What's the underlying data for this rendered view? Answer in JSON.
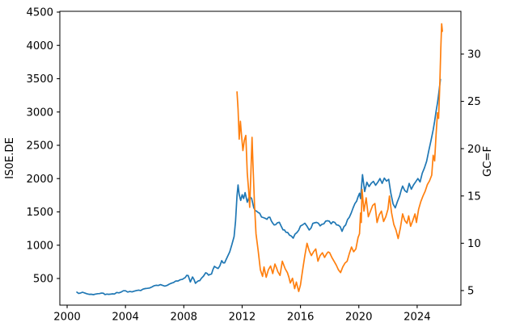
{
  "chart_data": {
    "type": "line",
    "title": "",
    "xlabel": "",
    "ylabel": "IS0E.DE",
    "y2label": "GC=F",
    "legend": "none",
    "grid": false,
    "background": "#ffffff",
    "axis_color": "#000000",
    "xlim": [
      1999.5,
      2027.0
    ],
    "ylim_left": [
      100,
      4512
    ],
    "ylim_right": [
      3.46,
      34.52
    ],
    "x_ticks": [
      2000,
      2004,
      2008,
      2012,
      2016,
      2020,
      2024
    ],
    "y_ticks_left": [
      500,
      1000,
      1500,
      2000,
      2500,
      3000,
      3500,
      4000,
      4500
    ],
    "y_ticks_right": [
      5,
      10,
      15,
      20,
      25,
      30
    ],
    "series": [
      {
        "name": "IS0E.DE",
        "yaxis": "left",
        "color": "#1f77b4",
        "points": [
          [
            2000.67,
            295
          ],
          [
            2000.9,
            280
          ],
          [
            2001.2,
            283
          ],
          [
            2001.5,
            262
          ],
          [
            2001.8,
            258
          ],
          [
            2002.1,
            272
          ],
          [
            2002.35,
            281
          ],
          [
            2002.6,
            259
          ],
          [
            2002.85,
            263
          ],
          [
            2003.1,
            270
          ],
          [
            2003.4,
            290
          ],
          [
            2003.7,
            296
          ],
          [
            2004.0,
            316
          ],
          [
            2004.3,
            305
          ],
          [
            2004.6,
            310
          ],
          [
            2004.9,
            325
          ],
          [
            2005.2,
            340
          ],
          [
            2005.5,
            352
          ],
          [
            2005.8,
            371
          ],
          [
            2006.1,
            398
          ],
          [
            2006.4,
            408
          ],
          [
            2006.7,
            386
          ],
          [
            2007.0,
            415
          ],
          [
            2007.3,
            440
          ],
          [
            2007.6,
            462
          ],
          [
            2007.9,
            487
          ],
          [
            2008.1,
            515
          ],
          [
            2008.3,
            545
          ],
          [
            2008.45,
            448
          ],
          [
            2008.6,
            523
          ],
          [
            2008.8,
            427
          ],
          [
            2009.0,
            465
          ],
          [
            2009.2,
            503
          ],
          [
            2009.5,
            586
          ],
          [
            2009.7,
            550
          ],
          [
            2009.9,
            568
          ],
          [
            2010.1,
            683
          ],
          [
            2010.35,
            650
          ],
          [
            2010.6,
            768
          ],
          [
            2010.8,
            735
          ],
          [
            2011.0,
            830
          ],
          [
            2011.15,
            900
          ],
          [
            2011.3,
            1010
          ],
          [
            2011.45,
            1130
          ],
          [
            2011.55,
            1360
          ],
          [
            2011.65,
            1740
          ],
          [
            2011.72,
            1905
          ],
          [
            2011.8,
            1760
          ],
          [
            2011.9,
            1672
          ],
          [
            2012.0,
            1758
          ],
          [
            2012.1,
            1700
          ],
          [
            2012.2,
            1790
          ],
          [
            2012.35,
            1645
          ],
          [
            2012.5,
            1735
          ],
          [
            2012.65,
            1700
          ],
          [
            2012.8,
            1560
          ],
          [
            2013.0,
            1510
          ],
          [
            2013.2,
            1480
          ],
          [
            2013.45,
            1415
          ],
          [
            2013.7,
            1388
          ],
          [
            2013.9,
            1420
          ],
          [
            2014.1,
            1330
          ],
          [
            2014.3,
            1308
          ],
          [
            2014.55,
            1345
          ],
          [
            2014.8,
            1230
          ],
          [
            2015.0,
            1195
          ],
          [
            2015.25,
            1150
          ],
          [
            2015.5,
            1106
          ],
          [
            2015.75,
            1188
          ],
          [
            2016.0,
            1288
          ],
          [
            2016.3,
            1330
          ],
          [
            2016.6,
            1228
          ],
          [
            2016.85,
            1328
          ],
          [
            2017.1,
            1342
          ],
          [
            2017.35,
            1290
          ],
          [
            2017.6,
            1320
          ],
          [
            2017.85,
            1368
          ],
          [
            2018.1,
            1320
          ],
          [
            2018.35,
            1342
          ],
          [
            2018.6,
            1300
          ],
          [
            2018.85,
            1208
          ],
          [
            2019.1,
            1305
          ],
          [
            2019.35,
            1420
          ],
          [
            2019.6,
            1555
          ],
          [
            2019.85,
            1660
          ],
          [
            2020.05,
            1780
          ],
          [
            2020.12,
            1700
          ],
          [
            2020.25,
            2060
          ],
          [
            2020.4,
            1805
          ],
          [
            2020.55,
            1945
          ],
          [
            2020.7,
            1880
          ],
          [
            2020.85,
            1930
          ],
          [
            2021.0,
            1958
          ],
          [
            2021.15,
            1900
          ],
          [
            2021.3,
            1945
          ],
          [
            2021.45,
            2000
          ],
          [
            2021.6,
            1928
          ],
          [
            2021.75,
            2008
          ],
          [
            2021.9,
            1962
          ],
          [
            2022.05,
            1990
          ],
          [
            2022.2,
            1778
          ],
          [
            2022.35,
            1620
          ],
          [
            2022.5,
            1560
          ],
          [
            2022.65,
            1655
          ],
          [
            2022.8,
            1738
          ],
          [
            2023.0,
            1888
          ],
          [
            2023.15,
            1820
          ],
          [
            2023.3,
            1795
          ],
          [
            2023.45,
            1928
          ],
          [
            2023.6,
            1840
          ],
          [
            2023.75,
            1905
          ],
          [
            2023.9,
            1952
          ],
          [
            2024.05,
            2000
          ],
          [
            2024.2,
            1950
          ],
          [
            2024.35,
            2080
          ],
          [
            2024.5,
            2160
          ],
          [
            2024.65,
            2260
          ],
          [
            2024.8,
            2420
          ],
          [
            2024.95,
            2570
          ],
          [
            2025.1,
            2730
          ],
          [
            2025.2,
            2860
          ],
          [
            2025.3,
            3010
          ],
          [
            2025.4,
            3140
          ],
          [
            2025.48,
            3280
          ],
          [
            2025.55,
            3400
          ],
          [
            2025.6,
            3490
          ]
        ]
      },
      {
        "name": "GC=F",
        "yaxis": "right",
        "color": "#ff7f0e",
        "points": [
          [
            2011.65,
            26.0
          ],
          [
            2011.72,
            24.2
          ],
          [
            2011.8,
            21.0
          ],
          [
            2011.88,
            22.9
          ],
          [
            2011.95,
            21.5
          ],
          [
            2012.05,
            19.8
          ],
          [
            2012.15,
            20.9
          ],
          [
            2012.25,
            21.4
          ],
          [
            2012.35,
            17.4
          ],
          [
            2012.45,
            15.5
          ],
          [
            2012.52,
            13.8
          ],
          [
            2012.6,
            17.5
          ],
          [
            2012.68,
            21.2
          ],
          [
            2012.75,
            18.0
          ],
          [
            2012.85,
            14.0
          ],
          [
            2012.95,
            11.0
          ],
          [
            2013.1,
            9.2
          ],
          [
            2013.25,
            7.2
          ],
          [
            2013.4,
            6.5
          ],
          [
            2013.5,
            7.5
          ],
          [
            2013.65,
            6.4
          ],
          [
            2013.8,
            7.2
          ],
          [
            2013.95,
            7.6
          ],
          [
            2014.1,
            6.8
          ],
          [
            2014.25,
            7.8
          ],
          [
            2014.45,
            7.0
          ],
          [
            2014.6,
            6.6
          ],
          [
            2014.75,
            8.1
          ],
          [
            2014.95,
            7.3
          ],
          [
            2015.1,
            6.9
          ],
          [
            2015.3,
            5.8
          ],
          [
            2015.45,
            6.3
          ],
          [
            2015.6,
            5.2
          ],
          [
            2015.72,
            5.9
          ],
          [
            2015.88,
            4.9
          ],
          [
            2016.0,
            5.6
          ],
          [
            2016.15,
            7.2
          ],
          [
            2016.3,
            8.7
          ],
          [
            2016.45,
            10.0
          ],
          [
            2016.6,
            9.2
          ],
          [
            2016.75,
            8.7
          ],
          [
            2016.9,
            9.1
          ],
          [
            2017.05,
            9.4
          ],
          [
            2017.2,
            8.1
          ],
          [
            2017.35,
            8.7
          ],
          [
            2017.5,
            9.0
          ],
          [
            2017.65,
            8.5
          ],
          [
            2017.8,
            8.9
          ],
          [
            2018.0,
            9.0
          ],
          [
            2018.15,
            8.5
          ],
          [
            2018.3,
            8.1
          ],
          [
            2018.45,
            7.7
          ],
          [
            2018.6,
            7.2
          ],
          [
            2018.75,
            6.9
          ],
          [
            2018.9,
            7.5
          ],
          [
            2019.05,
            7.9
          ],
          [
            2019.2,
            8.1
          ],
          [
            2019.35,
            8.9
          ],
          [
            2019.5,
            9.6
          ],
          [
            2019.65,
            9.1
          ],
          [
            2019.8,
            9.4
          ],
          [
            2019.95,
            10.6
          ],
          [
            2020.05,
            11.0
          ],
          [
            2020.12,
            13.2
          ],
          [
            2020.17,
            12.2
          ],
          [
            2020.22,
            15.7
          ],
          [
            2020.35,
            13.4
          ],
          [
            2020.5,
            14.8
          ],
          [
            2020.65,
            12.8
          ],
          [
            2020.8,
            13.4
          ],
          [
            2020.95,
            14.0
          ],
          [
            2021.1,
            14.2
          ],
          [
            2021.25,
            12.2
          ],
          [
            2021.4,
            13.0
          ],
          [
            2021.55,
            13.4
          ],
          [
            2021.7,
            12.3
          ],
          [
            2021.85,
            12.8
          ],
          [
            2022.0,
            13.6
          ],
          [
            2022.1,
            15.0
          ],
          [
            2022.25,
            13.2
          ],
          [
            2022.4,
            12.0
          ],
          [
            2022.55,
            11.4
          ],
          [
            2022.7,
            10.5
          ],
          [
            2022.85,
            11.6
          ],
          [
            2023.0,
            13.1
          ],
          [
            2023.15,
            12.4
          ],
          [
            2023.3,
            12.1
          ],
          [
            2023.42,
            12.9
          ],
          [
            2023.55,
            11.8
          ],
          [
            2023.7,
            12.4
          ],
          [
            2023.85,
            13.1
          ],
          [
            2023.95,
            12.2
          ],
          [
            2024.1,
            13.6
          ],
          [
            2024.25,
            14.4
          ],
          [
            2024.4,
            15.0
          ],
          [
            2024.55,
            15.5
          ],
          [
            2024.7,
            16.2
          ],
          [
            2024.85,
            16.6
          ],
          [
            2025.0,
            17.2
          ],
          [
            2025.1,
            19.3
          ],
          [
            2025.2,
            18.7
          ],
          [
            2025.3,
            21.5
          ],
          [
            2025.4,
            23.8
          ],
          [
            2025.47,
            23.2
          ],
          [
            2025.55,
            26.5
          ],
          [
            2025.62,
            30.5
          ],
          [
            2025.68,
            33.2
          ],
          [
            2025.73,
            32.4
          ]
        ]
      }
    ]
  }
}
